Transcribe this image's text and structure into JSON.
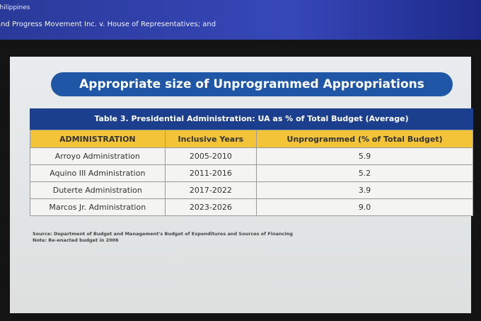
{
  "header": {
    "breadcrumb": "Philippines",
    "case_line": "and Progress Movement Inc. v. House of Representatives; and"
  },
  "slide": {
    "title": "Appropriate size of Unprogrammed Appropriations",
    "table": {
      "caption": "Table 3. Presidential Administration: UA as % of Total Budget (Average)",
      "columns": [
        "ADMINISTRATION",
        "Inclusive Years",
        "Unprogrammed (% of Total Budget)"
      ],
      "rows": [
        [
          "Arroyo Administration",
          "2005-2010",
          "5.9"
        ],
        [
          "Aquino III Administration",
          "2011-2016",
          "5.2"
        ],
        [
          "Duterte Administration",
          "2017-2022",
          "3.9"
        ],
        [
          "Marcos Jr. Administration",
          "2023-2026",
          "9.0"
        ]
      ]
    },
    "source": "Source: Department of Budget and Management's Budget of Expenditures and Sources of Financing",
    "note": "Note: Re-enacted budget in 2006"
  }
}
